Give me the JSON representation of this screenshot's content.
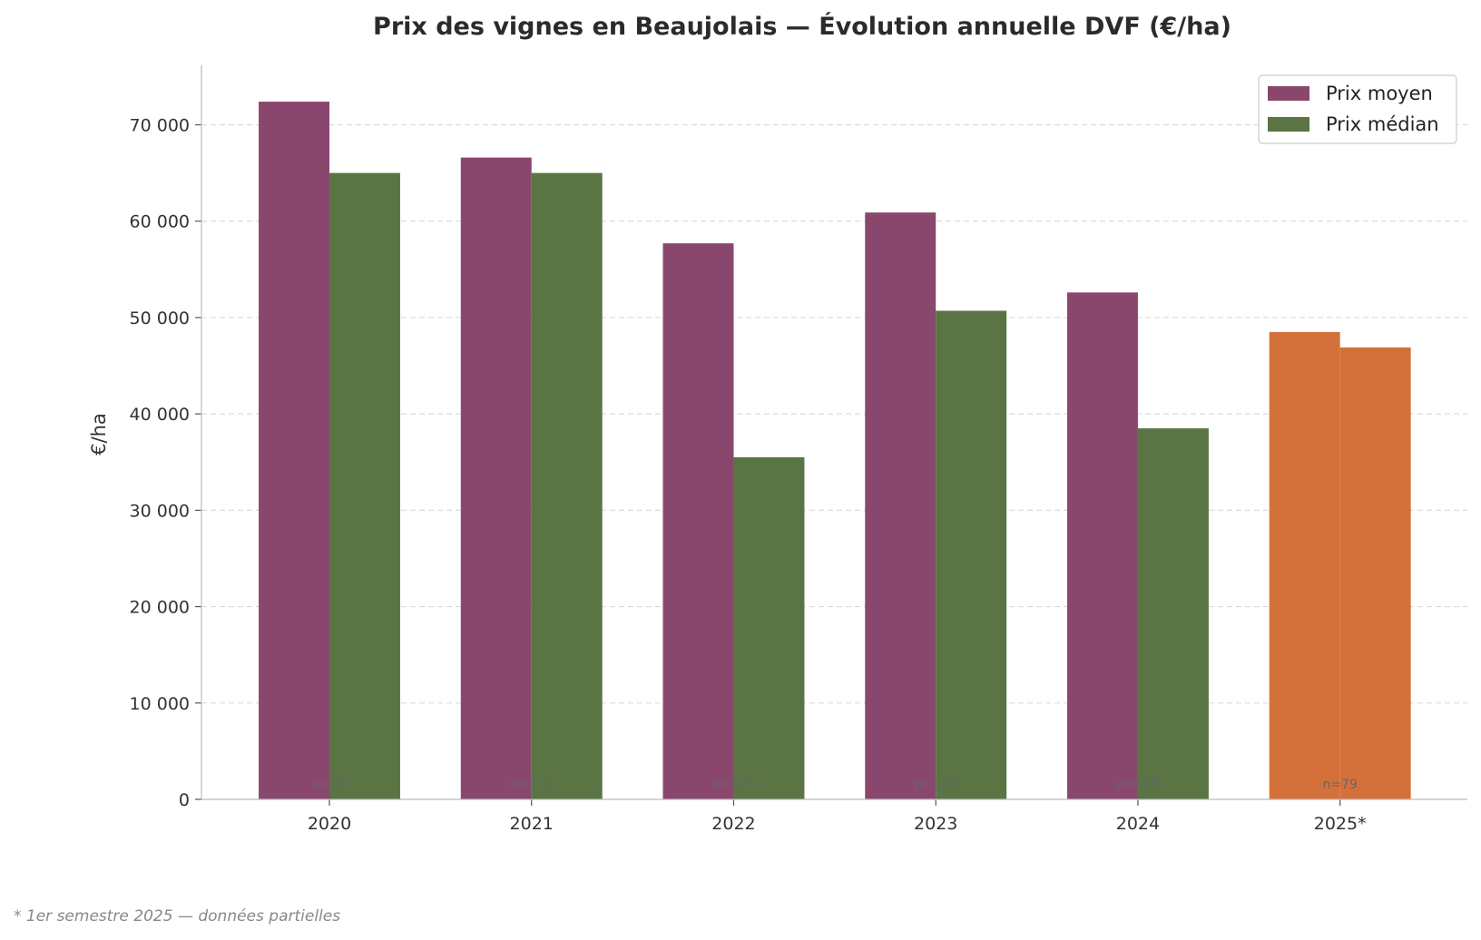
{
  "chart_data": {
    "type": "bar",
    "title": "Prix des vignes en Beaujolais — Évolution annuelle DVF (€/ha)",
    "xlabel": "",
    "ylabel": "€/ha",
    "categories": [
      "2020",
      "2021",
      "2022",
      "2023",
      "2024",
      "2025*"
    ],
    "series": [
      {
        "name": "Prix moyen",
        "values": [
          72400,
          66600,
          57700,
          60900,
          52600,
          48500
        ],
        "color": "#8a476d"
      },
      {
        "name": "Prix médian",
        "values": [
          65000,
          65000,
          35500,
          50700,
          38500,
          46900
        ],
        "color": "#5a7443"
      }
    ],
    "highlight": {
      "category": "2025*",
      "color": "#d4713a"
    },
    "annotations": [
      "n=83",
      "n=173",
      "n=189",
      "n=168",
      "n=166",
      "n=79"
    ],
    "yticks": [
      0,
      10000,
      20000,
      30000,
      40000,
      50000,
      60000,
      70000
    ],
    "ytick_labels": [
      "0",
      "10 000",
      "20 000",
      "30 000",
      "40 000",
      "50 000",
      "60 000",
      "70 000"
    ],
    "ylim": [
      0,
      76170
    ],
    "grid": "horizontal dashed",
    "legend": "top-right",
    "footnote": "* 1er semestre 2025 — données partielles"
  }
}
